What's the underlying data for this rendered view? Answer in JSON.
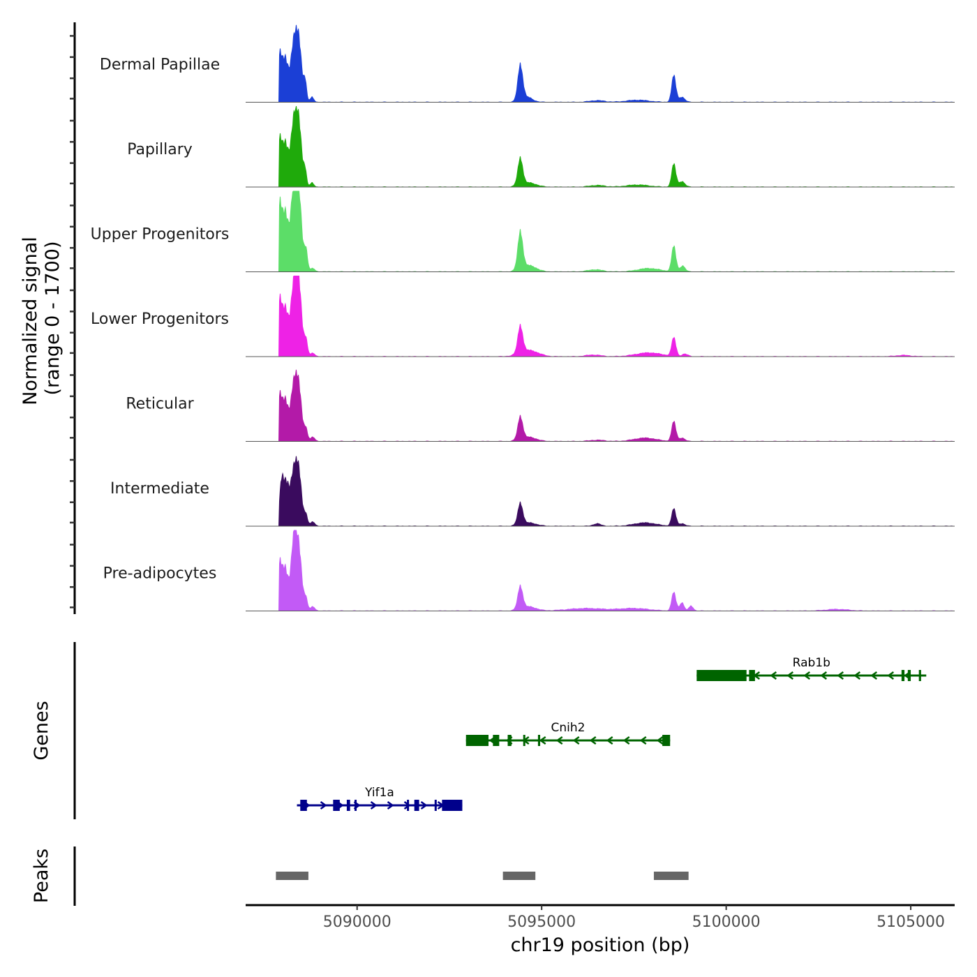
{
  "chart_data": {
    "type": "area",
    "title": "",
    "xlabel": "chr19 position (bp)",
    "ylabel": "Normalized signal\n(range 0 - 1700)",
    "ylabel_lines": [
      "Normalized signal",
      "(range 0 - 1700)"
    ],
    "xlim": [
      5086980,
      5106190
    ],
    "ylim": [
      0,
      1700
    ],
    "x_ticks": [
      5090000,
      5095000,
      5100000,
      5105000
    ],
    "x_tick_labels": [
      "5090000",
      "5095000",
      "5100000",
      "5105000"
    ],
    "grid": false,
    "tracks": [
      {
        "name": "Dermal Papillae",
        "color": "#1B3FD6",
        "peaks": [
          [
            5087900,
            1100,
            60
          ],
          [
            5088050,
            1000,
            70
          ],
          [
            5088280,
            1350,
            90
          ],
          [
            5088430,
            1250,
            80
          ],
          [
            5088600,
            450,
            40
          ],
          [
            5088780,
            120,
            50
          ],
          [
            5094420,
            850,
            70
          ],
          [
            5094600,
            120,
            150
          ],
          [
            5096500,
            40,
            200
          ],
          [
            5097600,
            50,
            300
          ],
          [
            5098580,
            650,
            60
          ],
          [
            5098800,
            120,
            80
          ]
        ]
      },
      {
        "name": "Papillary",
        "color": "#1FAA0B",
        "peaks": [
          [
            5087900,
            1100,
            60
          ],
          [
            5088050,
            1000,
            70
          ],
          [
            5088280,
            1500,
            90
          ],
          [
            5088430,
            1300,
            80
          ],
          [
            5088600,
            350,
            40
          ],
          [
            5088780,
            100,
            50
          ],
          [
            5094420,
            650,
            70
          ],
          [
            5094650,
            100,
            200
          ],
          [
            5096500,
            40,
            200
          ],
          [
            5097600,
            50,
            300
          ],
          [
            5098580,
            560,
            60
          ],
          [
            5098800,
            130,
            80
          ]
        ]
      },
      {
        "name": "Upper Progenitors",
        "color": "#5CDD68",
        "peaks": [
          [
            5087900,
            1550,
            60
          ],
          [
            5088050,
            1350,
            70
          ],
          [
            5088280,
            1950,
            90
          ],
          [
            5088430,
            1600,
            80
          ],
          [
            5088620,
            500,
            45
          ],
          [
            5088800,
            80,
            60
          ],
          [
            5094420,
            900,
            70
          ],
          [
            5094650,
            150,
            200
          ],
          [
            5096450,
            50,
            200
          ],
          [
            5097900,
            80,
            300
          ],
          [
            5098580,
            620,
            60
          ],
          [
            5098820,
            140,
            70
          ]
        ]
      },
      {
        "name": "Lower Progenitors",
        "color": "#EE22E6",
        "peaks": [
          [
            5087900,
            1300,
            60
          ],
          [
            5088050,
            1100,
            70
          ],
          [
            5088280,
            1650,
            90
          ],
          [
            5088430,
            1500,
            80
          ],
          [
            5088620,
            380,
            45
          ],
          [
            5088800,
            80,
            60
          ],
          [
            5094420,
            650,
            70
          ],
          [
            5094650,
            150,
            250
          ],
          [
            5096400,
            40,
            200
          ],
          [
            5097900,
            90,
            350
          ],
          [
            5098580,
            450,
            60
          ],
          [
            5098880,
            60,
            80
          ],
          [
            5104800,
            30,
            200
          ]
        ]
      },
      {
        "name": "Reticular",
        "color": "#B31AA8",
        "peaks": [
          [
            5087900,
            1050,
            60
          ],
          [
            5088050,
            950,
            70
          ],
          [
            5088280,
            1300,
            90
          ],
          [
            5088430,
            1100,
            80
          ],
          [
            5088620,
            280,
            45
          ],
          [
            5088800,
            100,
            60
          ],
          [
            5094420,
            550,
            70
          ],
          [
            5094650,
            100,
            200
          ],
          [
            5096500,
            30,
            200
          ],
          [
            5097800,
            80,
            300
          ],
          [
            5098580,
            480,
            60
          ],
          [
            5098800,
            80,
            80
          ]
        ]
      },
      {
        "name": "Intermediate",
        "color": "#3A0B5E",
        "peaks": [
          [
            5087950,
            1000,
            60
          ],
          [
            5088080,
            900,
            70
          ],
          [
            5088280,
            1250,
            90
          ],
          [
            5088430,
            1100,
            80
          ],
          [
            5088620,
            250,
            45
          ],
          [
            5088800,
            100,
            60
          ],
          [
            5094420,
            520,
            70
          ],
          [
            5094650,
            80,
            200
          ],
          [
            5096500,
            60,
            100
          ],
          [
            5097800,
            80,
            300
          ],
          [
            5098580,
            420,
            60
          ],
          [
            5098800,
            60,
            80
          ]
        ]
      },
      {
        "name": "Pre-adipocytes",
        "color": "#C25AF6",
        "peaks": [
          [
            5087900,
            1100,
            60
          ],
          [
            5088050,
            1000,
            70
          ],
          [
            5088280,
            1650,
            80
          ],
          [
            5088430,
            1350,
            80
          ],
          [
            5088620,
            280,
            45
          ],
          [
            5088800,
            100,
            60
          ],
          [
            5094420,
            550,
            70
          ],
          [
            5094650,
            100,
            200
          ],
          [
            5096200,
            60,
            500
          ],
          [
            5097500,
            60,
            400
          ],
          [
            5098580,
            450,
            60
          ],
          [
            5098800,
            200,
            60
          ],
          [
            5099050,
            120,
            60
          ],
          [
            5103000,
            40,
            300
          ]
        ]
      }
    ],
    "genes": [
      {
        "name": "Rab1b",
        "strand": "-",
        "color": "#006400",
        "row": 0,
        "start": 5099200,
        "end": 5105420,
        "exons": [
          [
            5099200,
            5100550
          ],
          [
            5100620,
            5100780
          ],
          [
            5104750,
            5104830
          ],
          [
            5104920,
            5105000
          ],
          [
            5105220,
            5105280
          ]
        ]
      },
      {
        "name": "Cnih2",
        "strand": "-",
        "color": "#006400",
        "row": 1,
        "start": 5092950,
        "end": 5098480,
        "exons": [
          [
            5092950,
            5093560
          ],
          [
            5093680,
            5093850
          ],
          [
            5094080,
            5094180
          ],
          [
            5094500,
            5094540
          ],
          [
            5094900,
            5094960
          ],
          [
            5098270,
            5098480
          ]
        ]
      },
      {
        "name": "Yif1a",
        "strand": "+",
        "color": "#00008B",
        "row": 2,
        "start": 5088370,
        "end": 5092850,
        "exons": [
          [
            5088460,
            5088640
          ],
          [
            5089350,
            5089530
          ],
          [
            5089720,
            5089810
          ],
          [
            5089930,
            5089980
          ],
          [
            5091350,
            5091390
          ],
          [
            5091550,
            5091680
          ],
          [
            5092100,
            5092140
          ],
          [
            5092300,
            5092850
          ]
        ]
      }
    ],
    "peaks": [
      {
        "start": 5087800,
        "end": 5088680
      },
      {
        "start": 5093950,
        "end": 5094830
      },
      {
        "start": 5098040,
        "end": 5098980
      }
    ],
    "panel_labels": {
      "genes": "Genes",
      "peaks": "Peaks"
    },
    "peak_color": "#666666"
  }
}
